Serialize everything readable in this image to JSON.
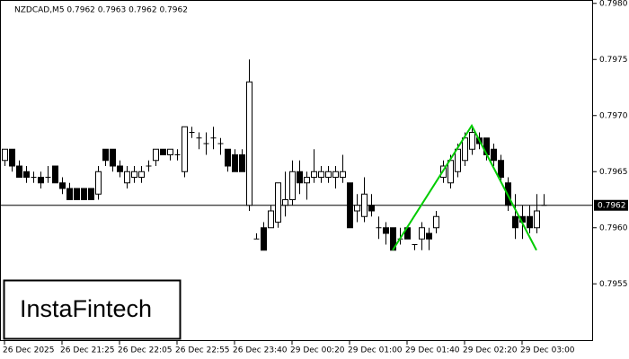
{
  "chart_data": {
    "type": "candlestick",
    "title": "NZDCAD,M5  0.7962 0.7963 0.7962 0.7962",
    "watermark": "InstaFintech",
    "categories": [
      "26 Dec 2025",
      null,
      null,
      null,
      null,
      null,
      null,
      null,
      "26 Dec 21:25",
      null,
      null,
      null,
      null,
      null,
      null,
      null,
      "26 Dec 22:05",
      null,
      null,
      null,
      null,
      null,
      null,
      null,
      "26 Dec 22:55",
      null,
      null,
      null,
      null,
      null,
      null,
      null,
      "26 Dec 23:40",
      null,
      null,
      null,
      null,
      null,
      null,
      null,
      "29 Dec 00:20",
      null,
      null,
      null,
      null,
      null,
      null,
      null,
      "29 Dec 01:00",
      null,
      null,
      null,
      null,
      null,
      null,
      null,
      "29 Dec 01:40",
      null,
      null,
      null,
      null,
      null,
      null,
      null,
      "29 Dec 02:20",
      null,
      null,
      null,
      null,
      null,
      null,
      null,
      "29 Dec 03:00",
      null,
      null,
      null
    ],
    "open": [
      0.7966,
      0.7967,
      0.79655,
      0.7965,
      0.79645,
      0.79645,
      0.79645,
      0.79655,
      0.7964,
      0.79635,
      0.79635,
      0.79635,
      0.79635,
      0.7963,
      0.7967,
      0.7967,
      0.79655,
      0.7964,
      0.79645,
      0.79645,
      0.79655,
      0.7966,
      0.7967,
      0.79665,
      0.79665,
      0.7965,
      0.79685,
      0.7968,
      0.79675,
      0.7968,
      0.79675,
      0.7967,
      0.79665,
      0.79665,
      0.7962,
      0.7959,
      0.796,
      0.796,
      0.79605,
      0.7962,
      0.79625,
      0.7965,
      0.7964,
      0.79645,
      0.79645,
      0.79645,
      0.79645,
      0.79645,
      0.7964,
      0.79615,
      0.7961,
      0.7962,
      0.796,
      0.796,
      0.796,
      0.7959,
      0.796,
      0.79585,
      0.7959,
      0.79595,
      0.796,
      0.79645,
      0.7964,
      0.7965,
      0.7966,
      0.7967,
      0.7968,
      0.7968,
      0.7967,
      0.7966,
      0.7964,
      0.7961,
      0.7961,
      0.7961,
      0.796,
      0.7962
    ],
    "high": [
      0.7967,
      0.7967,
      0.7966,
      0.79655,
      0.7965,
      0.7965,
      0.79655,
      0.79655,
      0.79645,
      0.7964,
      0.79635,
      0.79635,
      0.79635,
      0.79655,
      0.7967,
      0.7967,
      0.7966,
      0.79655,
      0.79655,
      0.79655,
      0.7966,
      0.7967,
      0.7967,
      0.7967,
      0.7967,
      0.7969,
      0.7969,
      0.79685,
      0.79685,
      0.7969,
      0.7968,
      0.7967,
      0.7967,
      0.7967,
      0.7975,
      0.79595,
      0.79605,
      0.7962,
      0.7964,
      0.7965,
      0.7966,
      0.7966,
      0.7965,
      0.7967,
      0.79655,
      0.79655,
      0.79655,
      0.79665,
      0.7964,
      0.7963,
      0.79645,
      0.7963,
      0.7961,
      0.79605,
      0.796,
      0.796,
      0.796,
      0.79585,
      0.79605,
      0.796,
      0.79615,
      0.7966,
      0.79665,
      0.79675,
      0.79685,
      0.7969,
      0.79685,
      0.7968,
      0.79675,
      0.79665,
      0.79645,
      0.7963,
      0.7962,
      0.7962,
      0.7963,
      0.7963
    ],
    "low": [
      0.79655,
      0.7965,
      0.79645,
      0.7964,
      0.7964,
      0.79635,
      0.7964,
      0.7964,
      0.7963,
      0.79625,
      0.79625,
      0.79625,
      0.79625,
      0.79625,
      0.79655,
      0.7965,
      0.79645,
      0.79635,
      0.7964,
      0.7964,
      0.7965,
      0.79655,
      0.79665,
      0.7966,
      0.7966,
      0.79645,
      0.7968,
      0.7967,
      0.79665,
      0.7967,
      0.79665,
      0.7965,
      0.7965,
      0.7965,
      0.79615,
      0.7959,
      0.7958,
      0.796,
      0.796,
      0.7961,
      0.7962,
      0.7963,
      0.79625,
      0.7964,
      0.7964,
      0.7964,
      0.79635,
      0.7964,
      0.796,
      0.79605,
      0.79605,
      0.7961,
      0.7959,
      0.79585,
      0.7958,
      0.79585,
      0.7959,
      0.7958,
      0.7958,
      0.7958,
      0.79595,
      0.7964,
      0.79635,
      0.79645,
      0.79655,
      0.79665,
      0.7967,
      0.7966,
      0.79655,
      0.7964,
      0.79615,
      0.7959,
      0.7959,
      0.79595,
      0.79595,
      0.7962
    ],
    "close": [
      0.7967,
      0.79655,
      0.79645,
      0.79645,
      0.79645,
      0.7964,
      0.79645,
      0.7964,
      0.79635,
      0.79625,
      0.79625,
      0.79625,
      0.79625,
      0.7965,
      0.7966,
      0.79655,
      0.7965,
      0.7965,
      0.7965,
      0.7965,
      0.79655,
      0.7967,
      0.79665,
      0.7967,
      0.79665,
      0.7969,
      0.79685,
      0.7968,
      0.79675,
      0.7968,
      0.79675,
      0.79655,
      0.7965,
      0.7965,
      0.7973,
      0.7959,
      0.7958,
      0.79615,
      0.7964,
      0.79625,
      0.7965,
      0.7964,
      0.79645,
      0.7965,
      0.7965,
      0.7965,
      0.7965,
      0.7965,
      0.796,
      0.7962,
      0.7963,
      0.79615,
      0.796,
      0.79595,
      0.7958,
      0.7959,
      0.7959,
      0.79585,
      0.796,
      0.7959,
      0.7961,
      0.79655,
      0.7966,
      0.7967,
      0.7968,
      0.79685,
      0.79675,
      0.79665,
      0.7966,
      0.79645,
      0.7962,
      0.796,
      0.79605,
      0.796,
      0.79615,
      0.7962
    ],
    "current_price": 0.7962,
    "pattern": {
      "color": "#00cc00",
      "index": [
        54,
        65,
        74
      ],
      "values": [
        0.7958,
        0.79691,
        0.7958
      ]
    },
    "ylim": [
      0.79499,
      0.79803
    ],
    "yticks": [
      0.7955,
      {
        "value": 0.796,
        "label": "0.7960"
      },
      0.7965,
      {
        "value": 0.797,
        "label": "0.7970"
      },
      0.7975,
      {
        "value": 0.798,
        "label": "0.7980"
      }
    ]
  }
}
